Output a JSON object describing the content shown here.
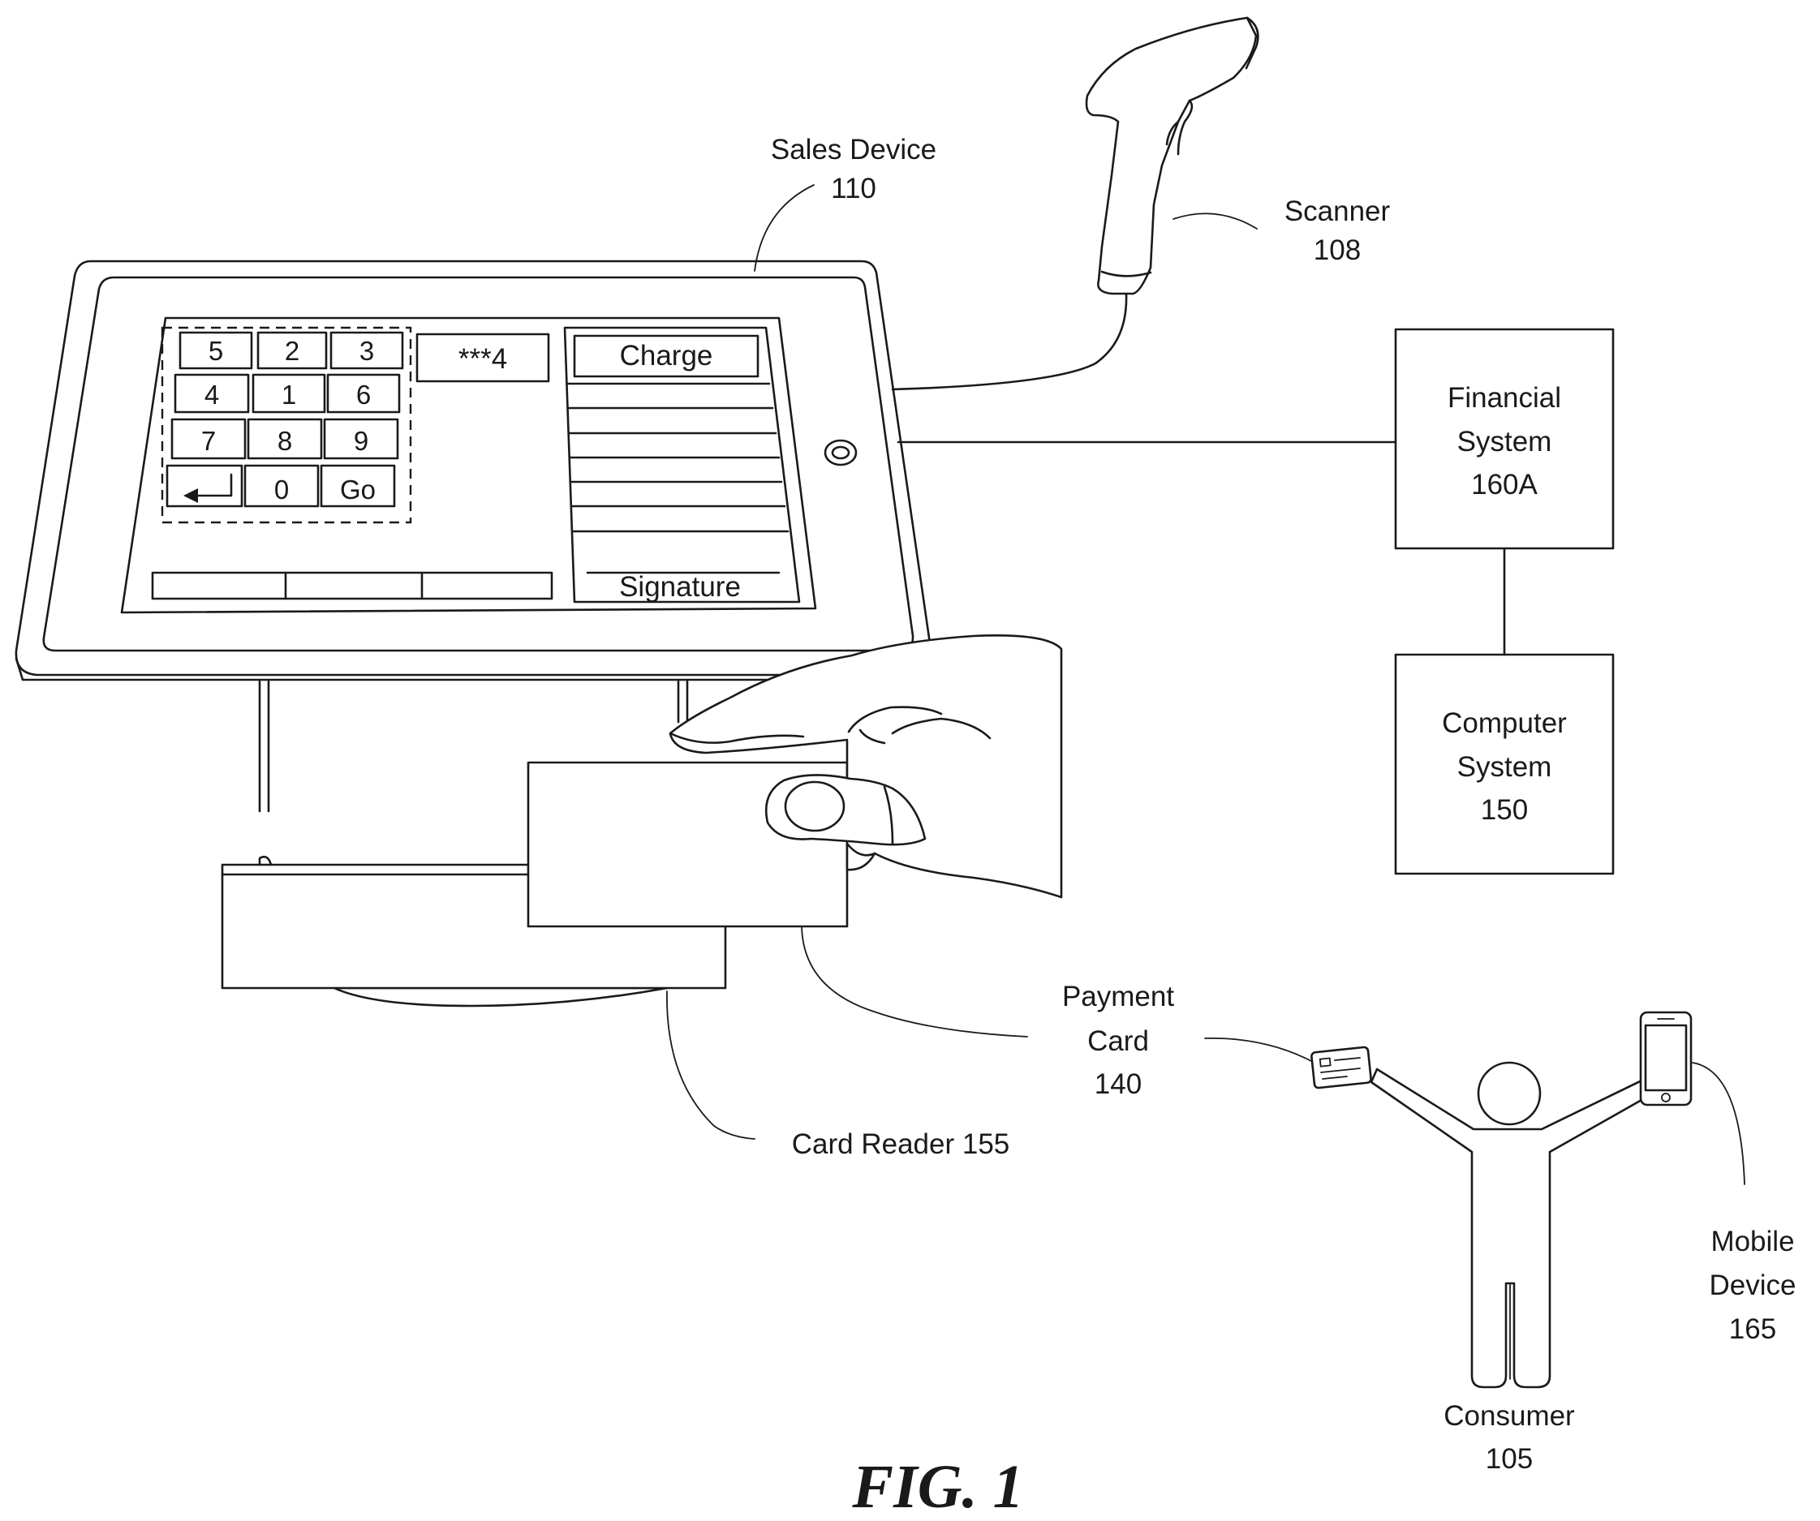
{
  "figure_label": "FIG. 1",
  "sales_device": {
    "label_name": "Sales Device",
    "label_ref": "110",
    "keypad": {
      "keys": [
        "5",
        "2",
        "3",
        "4",
        "1",
        "6",
        "7",
        "8",
        "9",
        "",
        "0",
        "Go"
      ],
      "enter_icon": "enter-arrow-icon"
    },
    "pin_display": "***4",
    "charge_button": "Charge",
    "signature_label": "Signature",
    "home_button_icon": "home-button-icon"
  },
  "scanner": {
    "label_name": "Scanner",
    "label_ref": "108"
  },
  "financial_system": {
    "line1": "Financial",
    "line2": "System",
    "line3": "160A"
  },
  "computer_system": {
    "line1": "Computer",
    "line2": "System",
    "line3": "150"
  },
  "payment_card": {
    "line1": "Payment",
    "line2": "Card",
    "line3": "140",
    "icon": "credit-card-icon"
  },
  "card_reader": {
    "label": "Card Reader 155"
  },
  "consumer": {
    "label_name": "Consumer",
    "label_ref": "105",
    "icon": "person-icon"
  },
  "mobile_device": {
    "line1": "Mobile",
    "line2": "Device",
    "line3": "165",
    "icon": "smartphone-icon"
  }
}
